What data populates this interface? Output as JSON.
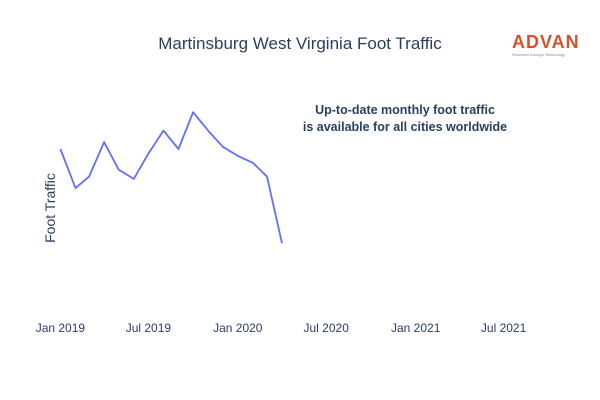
{
  "title": "Martinsburg West Virginia Foot Traffic",
  "logo": {
    "word": "ADVAN",
    "tagline": "Research through Technology"
  },
  "annotation": {
    "line1": "Up-to-date monthly foot traffic",
    "line2": "is available for all cities worldwide"
  },
  "colors": {
    "line": "#636efa",
    "text": "#2a3f5f",
    "logo": "#d5502b"
  },
  "chart_data": {
    "type": "line",
    "title": "Martinsburg West Virginia Foot Traffic",
    "xlabel": "",
    "ylabel": "Foot Traffic",
    "xlim": [
      "2018-11-20",
      "2021-10-25"
    ],
    "ylim": [
      0,
      100
    ],
    "grid": false,
    "x_ticks": [
      "Jan 2019",
      "Jul 2019",
      "Jan 2020",
      "Jul 2020",
      "Jan 2021",
      "Jul 2021"
    ],
    "x_tick_dates": [
      "2019-01-01",
      "2019-07-01",
      "2020-01-01",
      "2020-07-01",
      "2021-01-01",
      "2021-07-01"
    ],
    "series": [
      {
        "x": [
          "2019-01-01",
          "2019-02-01",
          "2019-03-01",
          "2019-04-01",
          "2019-05-01",
          "2019-06-01",
          "2019-07-01",
          "2019-08-01",
          "2019-09-01",
          "2019-10-01",
          "2019-11-01",
          "2019-12-01",
          "2020-01-01",
          "2020-02-01",
          "2020-03-01",
          "2020-04-01"
        ],
        "values": [
          70,
          53,
          58,
          73,
          61,
          57,
          68,
          78,
          70,
          86,
          78,
          71,
          67,
          64,
          58,
          29
        ]
      }
    ]
  }
}
